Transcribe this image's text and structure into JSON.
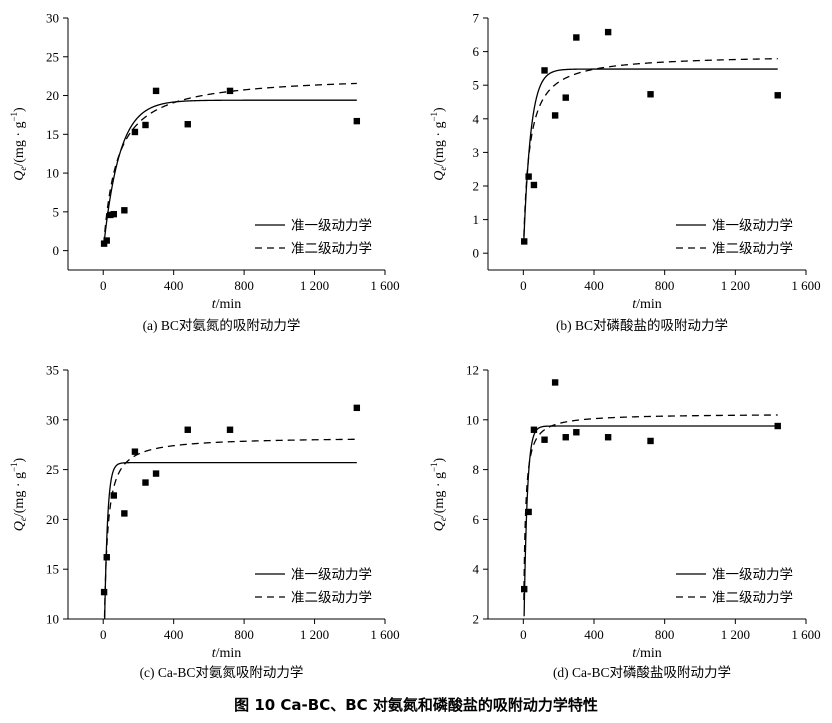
{
  "figure_caption": "图 10    Ca-BC、BC 对氨氮和磷酸盐的吸附动力学特性",
  "chart_data": [
    {
      "type": "scatter",
      "caption": "(a) BC对氨氮的吸附动力学",
      "xlabel_var": "t",
      "xlabel_unit": "/min",
      "ylabel_var": "Q",
      "ylabel_sub": "e",
      "ylabel_unit": "/(mg · g",
      "ylabel_sup": "−1",
      "ylabel_end": ")",
      "xlim": [
        -200,
        1600
      ],
      "ylim": [
        -2.5,
        30
      ],
      "xticks": [
        0,
        400,
        800,
        1200,
        1600
      ],
      "xtick_labels": [
        "0",
        "400",
        "800",
        "1 200",
        "1 600"
      ],
      "yticks": [
        0,
        5,
        10,
        15,
        20,
        25,
        30
      ],
      "ytick_labels": [
        "0",
        "5",
        "10",
        "15",
        "20",
        "25",
        "30"
      ],
      "points": {
        "x": [
          5,
          20,
          40,
          60,
          120,
          180,
          240,
          300,
          480,
          720,
          1440
        ],
        "y": [
          0.9,
          1.3,
          4.6,
          4.7,
          5.2,
          15.3,
          16.2,
          20.6,
          16.3,
          20.6,
          16.7
        ]
      },
      "series": [
        {
          "name": "准一级动力学",
          "model": "pfo",
          "qe": 19.4,
          "k": 0.011
        },
        {
          "name": "准二级动力学",
          "model": "pso",
          "qe": 22.7,
          "k": 0.00058
        }
      ],
      "legend": [
        "准一级动力学",
        "准二级动力学"
      ],
      "legend_position": "bottom-right"
    },
    {
      "type": "scatter",
      "caption": "(b) BC对磷酸盐的吸附动力学",
      "xlabel_var": "t",
      "xlabel_unit": "/min",
      "ylabel_var": "Q",
      "ylabel_sub": "e",
      "ylabel_unit": "/(mg · g",
      "ylabel_sup": "−1",
      "ylabel_end": ")",
      "xlim": [
        -200,
        1600
      ],
      "ylim": [
        -0.5,
        7
      ],
      "xticks": [
        0,
        400,
        800,
        1200,
        1600
      ],
      "xtick_labels": [
        "0",
        "400",
        "800",
        "1 200",
        "1 600"
      ],
      "yticks": [
        0,
        1,
        2,
        3,
        4,
        5,
        6,
        7
      ],
      "ytick_labels": [
        "0",
        "1",
        "2",
        "3",
        "4",
        "5",
        "6",
        "7"
      ],
      "points": {
        "x": [
          5,
          30,
          60,
          120,
          180,
          240,
          300,
          480,
          720,
          1440
        ],
        "y": [
          0.35,
          2.28,
          2.03,
          5.44,
          4.1,
          4.63,
          6.42,
          6.58,
          4.73,
          4.7
        ]
      },
      "series": [
        {
          "name": "准一级动力学",
          "model": "pfo",
          "qe": 5.48,
          "k": 0.025
        },
        {
          "name": "准二级动力学",
          "model": "pso",
          "qe": 5.92,
          "k": 0.0052
        }
      ],
      "legend": [
        "准一级动力学",
        "准二级动力学"
      ],
      "legend_position": "bottom-right"
    },
    {
      "type": "scatter",
      "caption": "(c) Ca-BC对氨氮吸附动力学",
      "xlabel_var": "t",
      "xlabel_unit": "/min",
      "ylabel_var": "Q",
      "ylabel_sub": "e",
      "ylabel_unit": "/(mg · g",
      "ylabel_sup": "−1",
      "ylabel_end": ")",
      "xlim": [
        -200,
        1600
      ],
      "ylim": [
        10,
        35
      ],
      "xticks": [
        0,
        400,
        800,
        1200,
        1600
      ],
      "xtick_labels": [
        "0",
        "400",
        "800",
        "1 200",
        "1 600"
      ],
      "yticks": [
        10,
        15,
        20,
        25,
        30,
        35
      ],
      "ytick_labels": [
        "10",
        "15",
        "20",
        "25",
        "30",
        "35"
      ],
      "points": {
        "x": [
          5,
          20,
          60,
          120,
          180,
          240,
          300,
          480,
          720,
          1440
        ],
        "y": [
          12.7,
          16.2,
          22.4,
          20.6,
          26.8,
          23.7,
          24.6,
          29.0,
          29.0,
          31.2
        ]
      },
      "series": [
        {
          "name": "准一级动力学",
          "model": "pfo",
          "qe": 25.7,
          "k": 0.06
        },
        {
          "name": "准二级动力学",
          "model": "pso",
          "qe": 28.3,
          "k": 0.0027
        }
      ],
      "legend": [
        "准一级动力学",
        "准二级动力学"
      ],
      "legend_position": "bottom-right"
    },
    {
      "type": "scatter",
      "caption": "(d) Ca-BC对磷酸盐吸附动力学",
      "xlabel_var": "t",
      "xlabel_unit": "/min",
      "ylabel_var": "Q",
      "ylabel_sub": "e",
      "ylabel_unit": "/(mg · g",
      "ylabel_sup": "−1",
      "ylabel_end": ")",
      "xlim": [
        -200,
        1600
      ],
      "ylim": [
        2,
        12
      ],
      "xticks": [
        0,
        400,
        800,
        1200,
        1600
      ],
      "xtick_labels": [
        "0",
        "400",
        "800",
        "1 200",
        "1 600"
      ],
      "yticks": [
        2,
        4,
        6,
        8,
        10,
        12
      ],
      "ytick_labels": [
        "2",
        "4",
        "6",
        "8",
        "10",
        "12"
      ],
      "points": {
        "x": [
          5,
          30,
          60,
          120,
          180,
          240,
          300,
          480,
          720,
          1440
        ],
        "y": [
          3.2,
          6.3,
          9.6,
          9.2,
          11.5,
          9.3,
          9.5,
          9.3,
          9.15,
          9.75
        ]
      },
      "series": [
        {
          "name": "准一级动力学",
          "model": "pfo",
          "qe": 9.75,
          "k": 0.055
        },
        {
          "name": "准二级动力学",
          "model": "pso",
          "qe": 10.25,
          "k": 0.012
        }
      ],
      "legend": [
        "准一级动力学",
        "准二级动力学"
      ],
      "legend_position": "bottom-right"
    }
  ]
}
